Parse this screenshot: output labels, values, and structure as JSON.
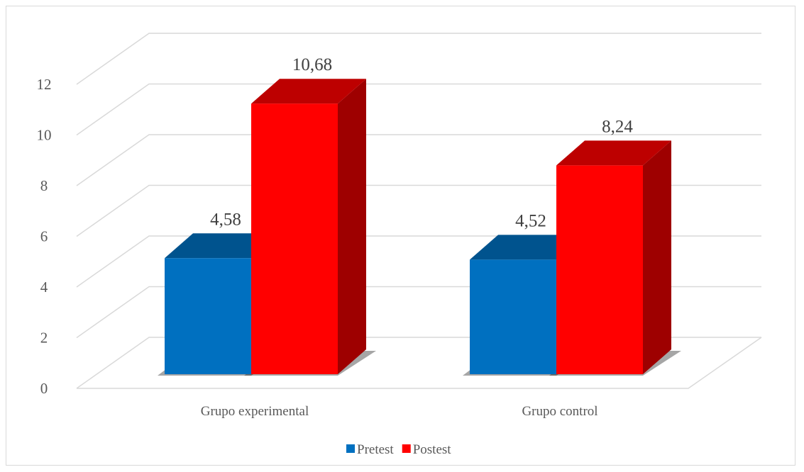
{
  "chart_data": {
    "type": "bar",
    "style": "3d-clustered-column",
    "categories": [
      "Grupo experimental",
      "Grupo control"
    ],
    "series": [
      {
        "name": "Pretest",
        "values": [
          4.58,
          4.52
        ],
        "labels": [
          "4,58",
          "4,52"
        ],
        "color": "#0070c0"
      },
      {
        "name": "Postest",
        "values": [
          10.68,
          8.24
        ],
        "labels": [
          "10,68",
          "8,24"
        ],
        "color": "#ff0000"
      }
    ],
    "y_ticks": [
      "0",
      "2",
      "4",
      "6",
      "8",
      "10",
      "12"
    ],
    "ylim": [
      0,
      12
    ],
    "grid": true,
    "legend_position": "bottom"
  }
}
